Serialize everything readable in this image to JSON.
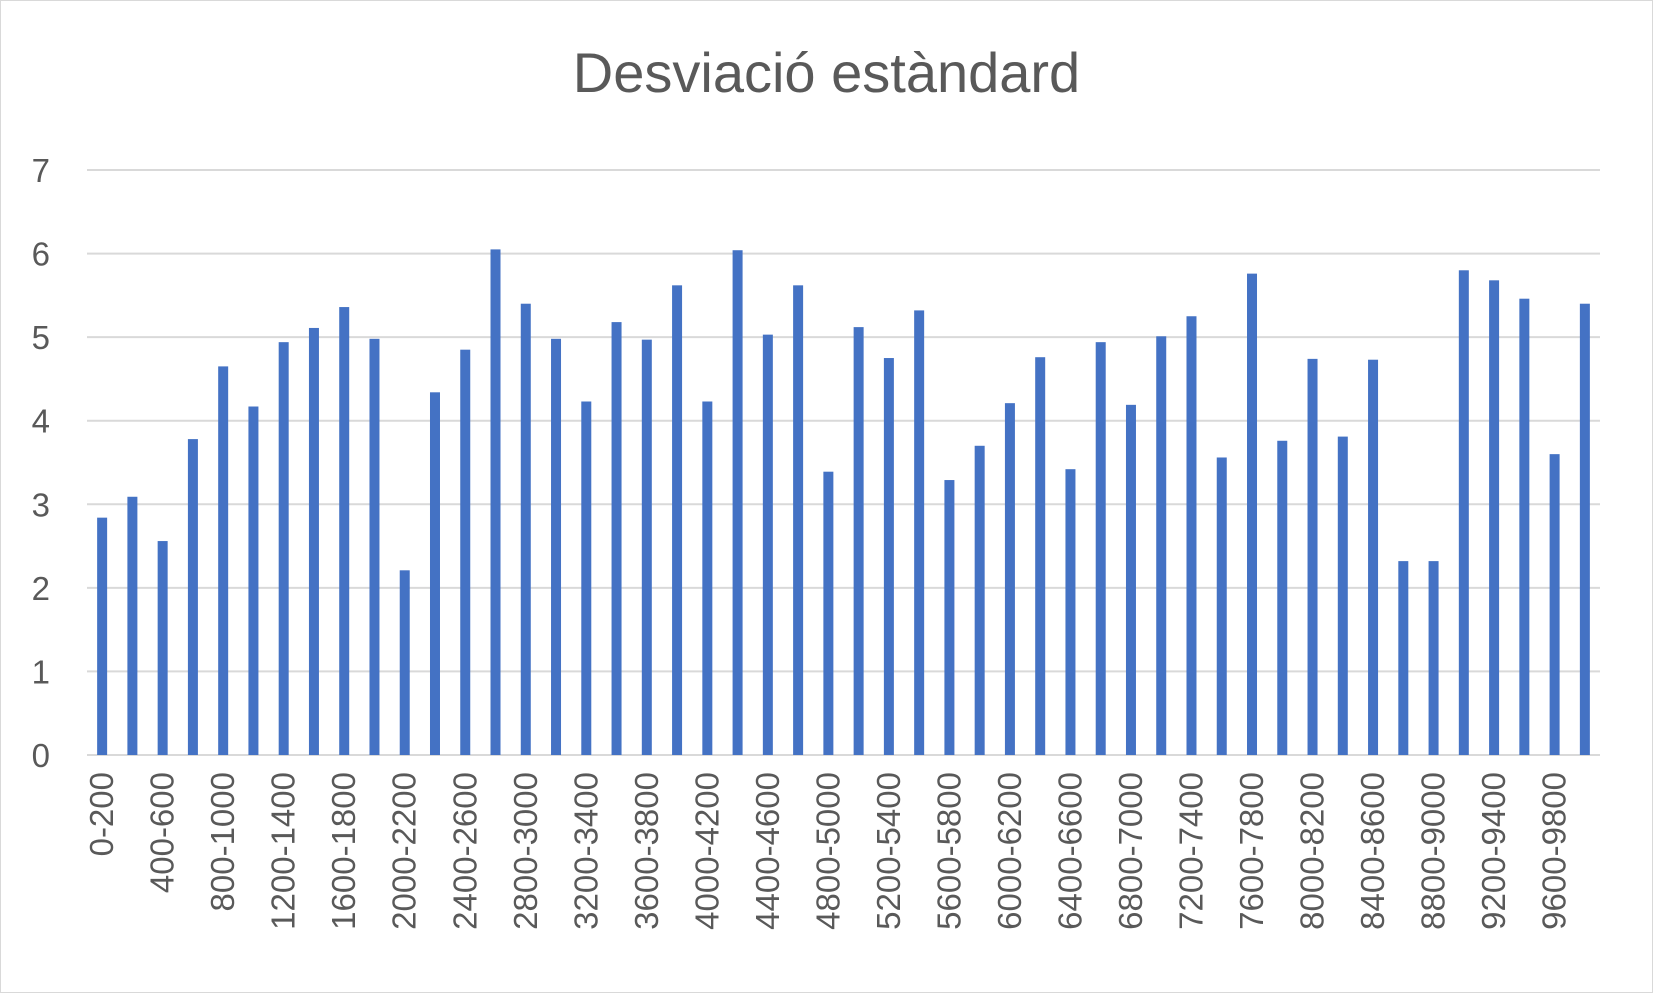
{
  "chart_data": {
    "type": "bar",
    "title": "Desviació estàndard",
    "xlabel": "",
    "ylabel": "",
    "ylim": [
      0,
      7
    ],
    "yticks": [
      0,
      1,
      2,
      3,
      4,
      5,
      6,
      7
    ],
    "grid": true,
    "legend": "none",
    "bar_color": "#4472c4",
    "grid_color": "#d9d9d9",
    "text_color": "#595959",
    "categories": [
      "0-200",
      "200-400",
      "400-600",
      "600-800",
      "800-1000",
      "1000-1200",
      "1200-1400",
      "1400-1600",
      "1600-1800",
      "1800-2000",
      "2000-2200",
      "2200-2400",
      "2400-2600",
      "2600-2800",
      "2800-3000",
      "3000-3200",
      "3200-3400",
      "3400-3600",
      "3600-3800",
      "3800-4000",
      "4000-4200",
      "4200-4400",
      "4400-4600",
      "4600-4800",
      "4800-5000",
      "5000-5200",
      "5200-5400",
      "5400-5600",
      "5600-5800",
      "5800-6000",
      "6000-6200",
      "6200-6400",
      "6400-6600",
      "6600-6800",
      "6800-7000",
      "7000-7200",
      "7200-7400",
      "7400-7600",
      "7600-7800",
      "7800-8000",
      "8000-8200",
      "8200-8400",
      "8400-8600",
      "8600-8800",
      "8800-9000",
      "9000-9200",
      "9200-9400",
      "9400-9600",
      "9600-9800",
      "9800-10000"
    ],
    "values": [
      2.84,
      3.09,
      2.56,
      3.78,
      4.65,
      4.17,
      4.94,
      5.11,
      5.36,
      4.98,
      2.21,
      4.34,
      4.85,
      6.05,
      5.4,
      4.98,
      4.23,
      5.18,
      4.97,
      5.62,
      4.23,
      6.04,
      5.03,
      5.62,
      3.39,
      5.12,
      4.75,
      5.32,
      3.29,
      3.7,
      4.21,
      4.76,
      3.42,
      4.94,
      4.19,
      5.01,
      5.25,
      3.56,
      5.76,
      3.76,
      4.74,
      3.81,
      4.73,
      2.32,
      2.32,
      5.8,
      5.68,
      5.46,
      3.6,
      5.4
    ],
    "labeled_categories": [
      "0-200",
      "400-600",
      "800-1000",
      "1200-1400",
      "1600-1800",
      "2000-2200",
      "2400-2600",
      "2800-3000",
      "3200-3400",
      "3600-3800",
      "4000-4200",
      "4400-4600",
      "4800-5000",
      "5200-5400",
      "5600-5800",
      "6000-6200",
      "6400-6600",
      "6800-7000",
      "7200-7400",
      "7600-7800",
      "8000-8200",
      "8400-8600",
      "8800-9000",
      "9200-9400",
      "9600-9800"
    ]
  }
}
